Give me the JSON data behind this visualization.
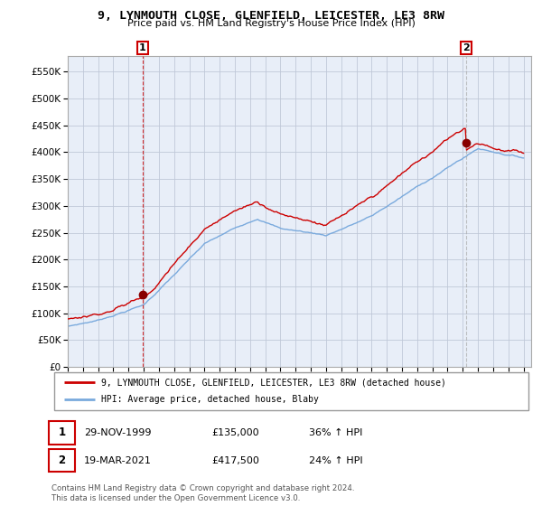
{
  "title": "9, LYNMOUTH CLOSE, GLENFIELD, LEICESTER, LE3 8RW",
  "subtitle": "Price paid vs. HM Land Registry's House Price Index (HPI)",
  "legend_line1": "9, LYNMOUTH CLOSE, GLENFIELD, LEICESTER, LE3 8RW (detached house)",
  "legend_line2": "HPI: Average price, detached house, Blaby",
  "sale1_date": "29-NOV-1999",
  "sale1_price": "£135,000",
  "sale1_hpi": "36% ↑ HPI",
  "sale2_date": "19-MAR-2021",
  "sale2_price": "£417,500",
  "sale2_hpi": "24% ↑ HPI",
  "footer": "Contains HM Land Registry data © Crown copyright and database right 2024.\nThis data is licensed under the Open Government Licence v3.0.",
  "house_color": "#cc0000",
  "hpi_color": "#7aaadd",
  "vline1_color": "#cc0000",
  "vline2_color": "#aaaaaa",
  "chart_bg": "#e8eef8",
  "background_color": "#ffffff",
  "grid_color": "#c0c8d8",
  "ylim": [
    0,
    580000
  ],
  "yticks": [
    0,
    50000,
    100000,
    150000,
    200000,
    250000,
    300000,
    350000,
    400000,
    450000,
    500000,
    550000
  ],
  "sale1_t": 1999.917,
  "sale1_p": 135000,
  "sale2_t": 2021.208,
  "sale2_p": 417500
}
